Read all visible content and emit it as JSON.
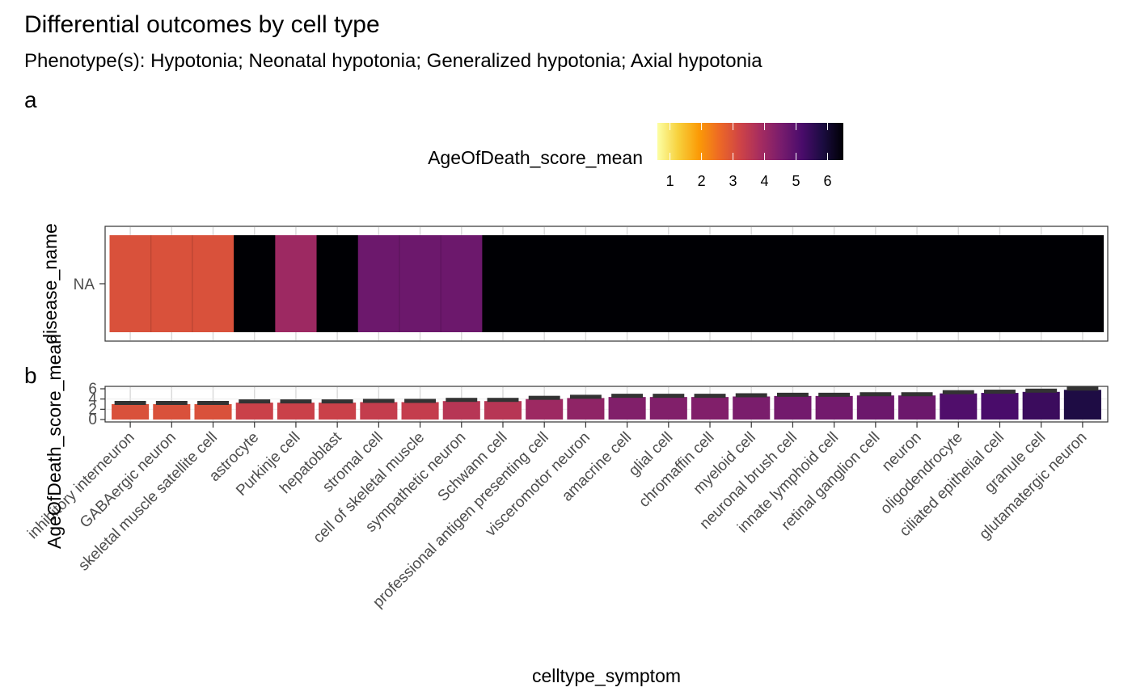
{
  "title": "Differential outcomes by cell type",
  "subtitle": "Phenotype(s): Hypotonia; Neonatal hypotonia; Generalized hypotonia; Axial hypotonia",
  "legend": {
    "title": "AgeOfDeath_score_mean",
    "ticks": [
      1,
      2,
      3,
      4,
      5,
      6
    ],
    "range": [
      0.6,
      6.5
    ],
    "palette": [
      "#FCFFA4",
      "#F7D13D",
      "#FB9B06",
      "#ED6925",
      "#CF4446",
      "#A52C60",
      "#781C6D",
      "#4A0C6B",
      "#1B0C41",
      "#000004"
    ]
  },
  "chart_data": [
    {
      "type": "heatmap",
      "tag": "a",
      "ylabel": "disease_name",
      "y_categories": [
        "NA"
      ],
      "categories": [
        "inhibitory interneuron",
        "GABAergic neuron",
        "skeletal muscle satellite cell",
        "astrocyte",
        "Purkinje cell",
        "hepatoblast",
        "stromal cell",
        "cell of skeletal muscle",
        "sympathetic neuron",
        "Schwann cell",
        "professional antigen presenting cell",
        "visceromotor neuron",
        "amacrine cell",
        "glial cell",
        "chromaffin cell",
        "myeloid cell",
        "neuronal brush cell",
        "innate lymphoid cell",
        "retinal ganglion cell",
        "neuron",
        "oligodendrocyte",
        "ciliated epithelial cell",
        "granule cell",
        "glutamatergic neuron"
      ],
      "values": [
        3.0,
        3.0,
        3.0,
        6.5,
        4.0,
        6.5,
        4.7,
        4.7,
        4.7,
        6.5,
        6.5,
        6.5,
        6.5,
        6.5,
        6.5,
        6.5,
        6.5,
        6.5,
        6.5,
        6.5,
        6.5,
        6.5,
        6.5,
        6.5
      ]
    },
    {
      "type": "bar",
      "tag": "b",
      "xlabel": "celltype_symptom",
      "ylabel": "AgeOfDeath_score_mean",
      "ylim": [
        0,
        6
      ],
      "yticks": [
        0,
        2,
        4,
        6
      ],
      "categories": [
        "inhibitory interneuron",
        "GABAergic neuron",
        "skeletal muscle satellite cell",
        "astrocyte",
        "Purkinje cell",
        "hepatoblast",
        "stromal cell",
        "cell of skeletal muscle",
        "sympathetic neuron",
        "Schwann cell",
        "professional antigen presenting cell",
        "visceromotor neuron",
        "amacrine cell",
        "glial cell",
        "chromaffin cell",
        "myeloid cell",
        "neuronal brush cell",
        "innate lymphoid cell",
        "retinal ganglion cell",
        "neuron",
        "oligodendrocyte",
        "ciliated epithelial cell",
        "granule cell",
        "glutamatergic neuron"
      ],
      "values": [
        3.0,
        3.0,
        3.0,
        3.3,
        3.3,
        3.3,
        3.4,
        3.4,
        3.6,
        3.6,
        4.0,
        4.2,
        4.4,
        4.4,
        4.4,
        4.5,
        4.6,
        4.6,
        4.7,
        4.7,
        5.1,
        5.2,
        5.4,
        5.8
      ]
    }
  ]
}
